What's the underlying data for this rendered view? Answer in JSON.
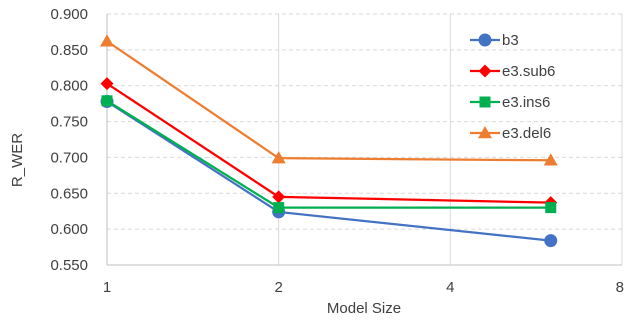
{
  "chart_data": {
    "type": "line",
    "xlabel": "Model Size",
    "ylabel": "R_WER",
    "x_scale": "log2",
    "x_ticks": [
      1,
      2,
      4,
      8
    ],
    "x_tick_labels": [
      "1",
      "2",
      "4",
      "8"
    ],
    "xlim": [
      1,
      8
    ],
    "ylim": [
      0.55,
      0.9
    ],
    "y_ticks": [
      0.55,
      0.6,
      0.65,
      0.7,
      0.75,
      0.8,
      0.85,
      0.9
    ],
    "y_tick_labels": [
      "0.550",
      "0.600",
      "0.650",
      "0.700",
      "0.750",
      "0.800",
      "0.850",
      "0.900"
    ],
    "grid": true,
    "legend_position": "top-right",
    "x": [
      1,
      2,
      6
    ],
    "series": [
      {
        "name": "b3",
        "values": [
          0.778,
          0.624,
          0.584
        ],
        "color": "#4472C4",
        "marker": "circle"
      },
      {
        "name": "e3.sub6",
        "values": [
          0.803,
          0.645,
          0.637
        ],
        "color": "#FF0000",
        "marker": "diamond"
      },
      {
        "name": "e3.ins6",
        "values": [
          0.779,
          0.63,
          0.63
        ],
        "color": "#00B050",
        "marker": "square"
      },
      {
        "name": "e3.del6",
        "values": [
          0.862,
          0.699,
          0.696
        ],
        "color": "#ED7D31",
        "marker": "triangle"
      }
    ]
  }
}
